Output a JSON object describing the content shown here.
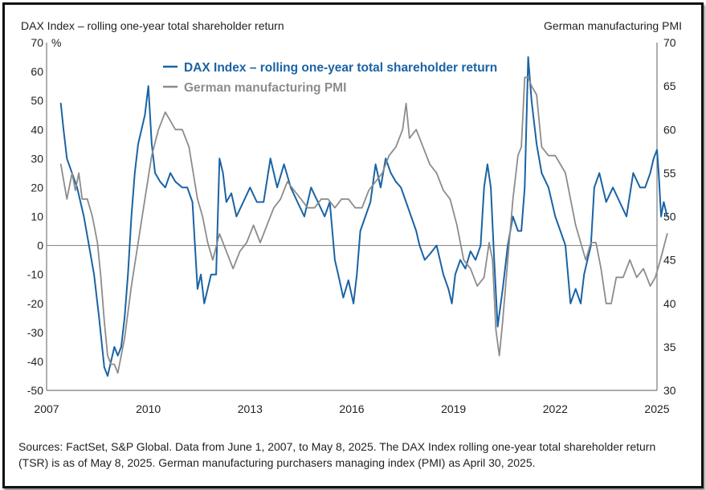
{
  "chart_data": {
    "type": "line",
    "left_axis_title": "DAX Index – rolling one-year total shareholder  return",
    "left_axis_unit": "%",
    "right_axis_title": "German manufacturing PMI",
    "x_ticks": [
      "2007",
      "2010",
      "2013",
      "2016",
      "2019",
      "2022",
      "2025"
    ],
    "x_tick_values": [
      2007,
      2010,
      2013,
      2016,
      2019,
      2022,
      2025
    ],
    "xlim": [
      2007,
      2025
    ],
    "ylim_left": [
      -50,
      70
    ],
    "yticks_left": [
      "70",
      "60",
      "50",
      "40",
      "30",
      "20",
      "10",
      "0",
      "-10",
      "-20",
      "-30",
      "-40",
      "-50"
    ],
    "ylim_right": [
      30,
      70
    ],
    "yticks_right": [
      "70",
      "65",
      "60",
      "55",
      "50",
      "45",
      "40",
      "35",
      "30"
    ],
    "legend_position": "top-left",
    "colors": {
      "dax": "#1a63a4",
      "pmi": "#8c8c8c",
      "zero_line": "#8c8c8c"
    },
    "series": [
      {
        "name": "DAX Index – rolling one-year total shareholder return",
        "axis": "left",
        "x": [
          2007.42,
          2007.5,
          2007.6,
          2007.75,
          2007.9,
          2008.0,
          2008.1,
          2008.25,
          2008.4,
          2008.55,
          2008.7,
          2008.8,
          2008.9,
          2009.0,
          2009.1,
          2009.2,
          2009.3,
          2009.4,
          2009.5,
          2009.6,
          2009.7,
          2009.8,
          2009.9,
          2010.0,
          2010.1,
          2010.2,
          2010.35,
          2010.5,
          2010.65,
          2010.8,
          2011.0,
          2011.15,
          2011.3,
          2011.45,
          2011.55,
          2011.65,
          2011.75,
          2011.85,
          2012.0,
          2012.1,
          2012.2,
          2012.3,
          2012.45,
          2012.6,
          2012.8,
          2013.0,
          2013.2,
          2013.4,
          2013.6,
          2013.8,
          2014.0,
          2014.2,
          2014.4,
          2014.6,
          2014.8,
          2015.0,
          2015.2,
          2015.35,
          2015.5,
          2015.6,
          2015.75,
          2015.9,
          2016.05,
          2016.15,
          2016.25,
          2016.4,
          2016.55,
          2016.7,
          2016.85,
          2017.0,
          2017.15,
          2017.3,
          2017.45,
          2017.6,
          2017.75,
          2017.9,
          2018.0,
          2018.15,
          2018.3,
          2018.5,
          2018.7,
          2018.85,
          2018.95,
          2019.05,
          2019.2,
          2019.35,
          2019.5,
          2019.65,
          2019.8,
          2019.9,
          2020.0,
          2020.1,
          2020.2,
          2020.3,
          2020.45,
          2020.6,
          2020.75,
          2020.9,
          2021.0,
          2021.1,
          2021.2,
          2021.3,
          2021.45,
          2021.6,
          2021.8,
          2022.0,
          2022.15,
          2022.3,
          2022.45,
          2022.6,
          2022.75,
          2022.85,
          2022.95,
          2023.05,
          2023.15,
          2023.3,
          2023.5,
          2023.7,
          2023.9,
          2024.1,
          2024.3,
          2024.5,
          2024.65,
          2024.8,
          2024.9,
          2025.0,
          2025.05,
          2025.12,
          2025.2,
          2025.3
        ],
        "values": [
          49,
          40,
          30,
          25,
          20,
          15,
          10,
          0,
          -10,
          -25,
          -42,
          -45,
          -40,
          -35,
          -38,
          -35,
          -25,
          -10,
          10,
          25,
          35,
          40,
          45,
          55,
          35,
          25,
          22,
          20,
          25,
          22,
          20,
          20,
          15,
          -15,
          -10,
          -20,
          -15,
          -10,
          -10,
          30,
          25,
          15,
          18,
          10,
          15,
          20,
          15,
          15,
          30,
          20,
          28,
          20,
          15,
          10,
          20,
          15,
          10,
          15,
          -5,
          -10,
          -18,
          -12,
          -20,
          -10,
          5,
          10,
          15,
          28,
          20,
          30,
          25,
          22,
          20,
          15,
          10,
          5,
          0,
          -5,
          -3,
          0,
          -10,
          -15,
          -20,
          -10,
          -5,
          -8,
          -2,
          -5,
          0,
          20,
          28,
          20,
          -5,
          -28,
          -15,
          0,
          10,
          5,
          5,
          20,
          65,
          50,
          35,
          25,
          20,
          10,
          5,
          0,
          -20,
          -15,
          -20,
          -10,
          -5,
          0,
          20,
          25,
          15,
          20,
          15,
          10,
          25,
          20,
          20,
          25,
          30,
          33,
          25,
          10,
          15,
          10
        ]
      },
      {
        "name": "German manufacturing PMI",
        "axis": "right",
        "x": [
          2007.42,
          2007.6,
          2007.75,
          2007.85,
          2007.95,
          2008.05,
          2008.2,
          2008.35,
          2008.5,
          2008.6,
          2008.7,
          2008.8,
          2008.9,
          2009.0,
          2009.1,
          2009.3,
          2009.5,
          2009.7,
          2009.9,
          2010.1,
          2010.3,
          2010.5,
          2010.8,
          2011.0,
          2011.2,
          2011.45,
          2011.6,
          2011.75,
          2011.9,
          2012.1,
          2012.3,
          2012.5,
          2012.7,
          2012.9,
          2013.1,
          2013.3,
          2013.5,
          2013.7,
          2013.9,
          2014.1,
          2014.3,
          2014.5,
          2014.7,
          2014.9,
          2015.1,
          2015.3,
          2015.5,
          2015.7,
          2015.9,
          2016.1,
          2016.3,
          2016.5,
          2016.7,
          2016.9,
          2017.1,
          2017.3,
          2017.5,
          2017.6,
          2017.7,
          2017.9,
          2018.1,
          2018.3,
          2018.5,
          2018.7,
          2018.9,
          2019.1,
          2019.3,
          2019.5,
          2019.7,
          2019.9,
          2020.05,
          2020.15,
          2020.25,
          2020.35,
          2020.45,
          2020.6,
          2020.75,
          2020.9,
          2021.0,
          2021.1,
          2021.2,
          2021.3,
          2021.45,
          2021.6,
          2021.8,
          2022.0,
          2022.15,
          2022.3,
          2022.45,
          2022.6,
          2022.75,
          2022.9,
          2023.05,
          2023.2,
          2023.35,
          2023.5,
          2023.65,
          2023.8,
          2024.0,
          2024.2,
          2024.4,
          2024.6,
          2024.8,
          2024.95,
          2025.1,
          2025.3
        ],
        "values": [
          56,
          52,
          55,
          53,
          55,
          52,
          52,
          50,
          47,
          43,
          38,
          34,
          33,
          33,
          32,
          36,
          42,
          47,
          52,
          57,
          60,
          62,
          60,
          60,
          58,
          52,
          50,
          47,
          45,
          48,
          46,
          44,
          46,
          47,
          49,
          47,
          49,
          51,
          52,
          54,
          53,
          52,
          51,
          51,
          52,
          52,
          51,
          52,
          52,
          51,
          51,
          53,
          54,
          55,
          57,
          58,
          60,
          63,
          59,
          60,
          58,
          56,
          55,
          53,
          52,
          49,
          45,
          44,
          42,
          43,
          47,
          45,
          37,
          34,
          38,
          45,
          52,
          57,
          58,
          66,
          66,
          65,
          64,
          58,
          57,
          57,
          56,
          55,
          52,
          49,
          47,
          45,
          47,
          47,
          44,
          40,
          40,
          43,
          43,
          45,
          43,
          44,
          42,
          43,
          45,
          48
        ]
      }
    ]
  },
  "labels": {
    "left_title": "DAX Index – rolling one-year total shareholder  return",
    "right_title": "German manufacturing PMI",
    "legend_dax": "DAX Index – rolling one-year total shareholder return",
    "legend_pmi": "German manufacturing PMI"
  },
  "footnote": "Sources: FactSet, S&P Global. Data from June 1, 2007, to May 8, 2025. The DAX Index rolling one-year total shareholder return (TSR) is as of May 8, 2025. German manufacturing purchasers managing index (PMI) as April 30, 2025."
}
